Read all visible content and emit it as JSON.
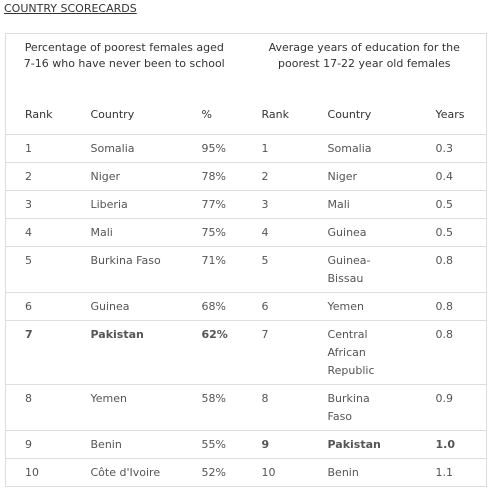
{
  "title": "COUNTRY SCORECARDS",
  "table": {
    "groups": [
      "Percentage of poorest females aged 7-16 who have never been to school",
      "Average years of education for the poorest 17-22 year old females"
    ],
    "columns": [
      "Rank",
      "Country",
      "%",
      "Rank",
      "Country",
      "Years"
    ],
    "rows": [
      {
        "cells": [
          "1",
          "Somalia",
          "95%",
          "1",
          "Somalia",
          "0.3"
        ],
        "bold": [
          false,
          false
        ]
      },
      {
        "cells": [
          "2",
          "Niger",
          "78%",
          "2",
          "Niger",
          "0.4"
        ],
        "bold": [
          false,
          false
        ]
      },
      {
        "cells": [
          "3",
          "Liberia",
          "77%",
          "3",
          "Mali",
          "0.5"
        ],
        "bold": [
          false,
          false
        ]
      },
      {
        "cells": [
          "4",
          "Mali",
          "75%",
          "4",
          "Guinea",
          "0.5"
        ],
        "bold": [
          false,
          false
        ]
      },
      {
        "cells": [
          "5",
          "Burkina Faso",
          "71%",
          "5",
          "Guinea-Bissau",
          "0.8"
        ],
        "bold": [
          false,
          false
        ]
      },
      {
        "cells": [
          "6",
          "Guinea",
          "68%",
          "6",
          "Yemen",
          "0.8"
        ],
        "bold": [
          false,
          false
        ]
      },
      {
        "cells": [
          "7",
          "Pakistan",
          "62%",
          "7",
          "Central African Republic",
          "0.8"
        ],
        "bold": [
          true,
          false
        ]
      },
      {
        "cells": [
          "8",
          "Yemen",
          "58%",
          "8",
          "Burkina Faso",
          "0.9"
        ],
        "bold": [
          false,
          false
        ]
      },
      {
        "cells": [
          "9",
          "Benin",
          "55%",
          "9",
          "Pakistan",
          "1.0"
        ],
        "bold": [
          false,
          true
        ]
      },
      {
        "cells": [
          "10",
          "Côte d'Ivoire",
          "52%",
          "10",
          "Benin",
          "1.1"
        ],
        "bold": [
          false,
          false
        ]
      }
    ]
  }
}
